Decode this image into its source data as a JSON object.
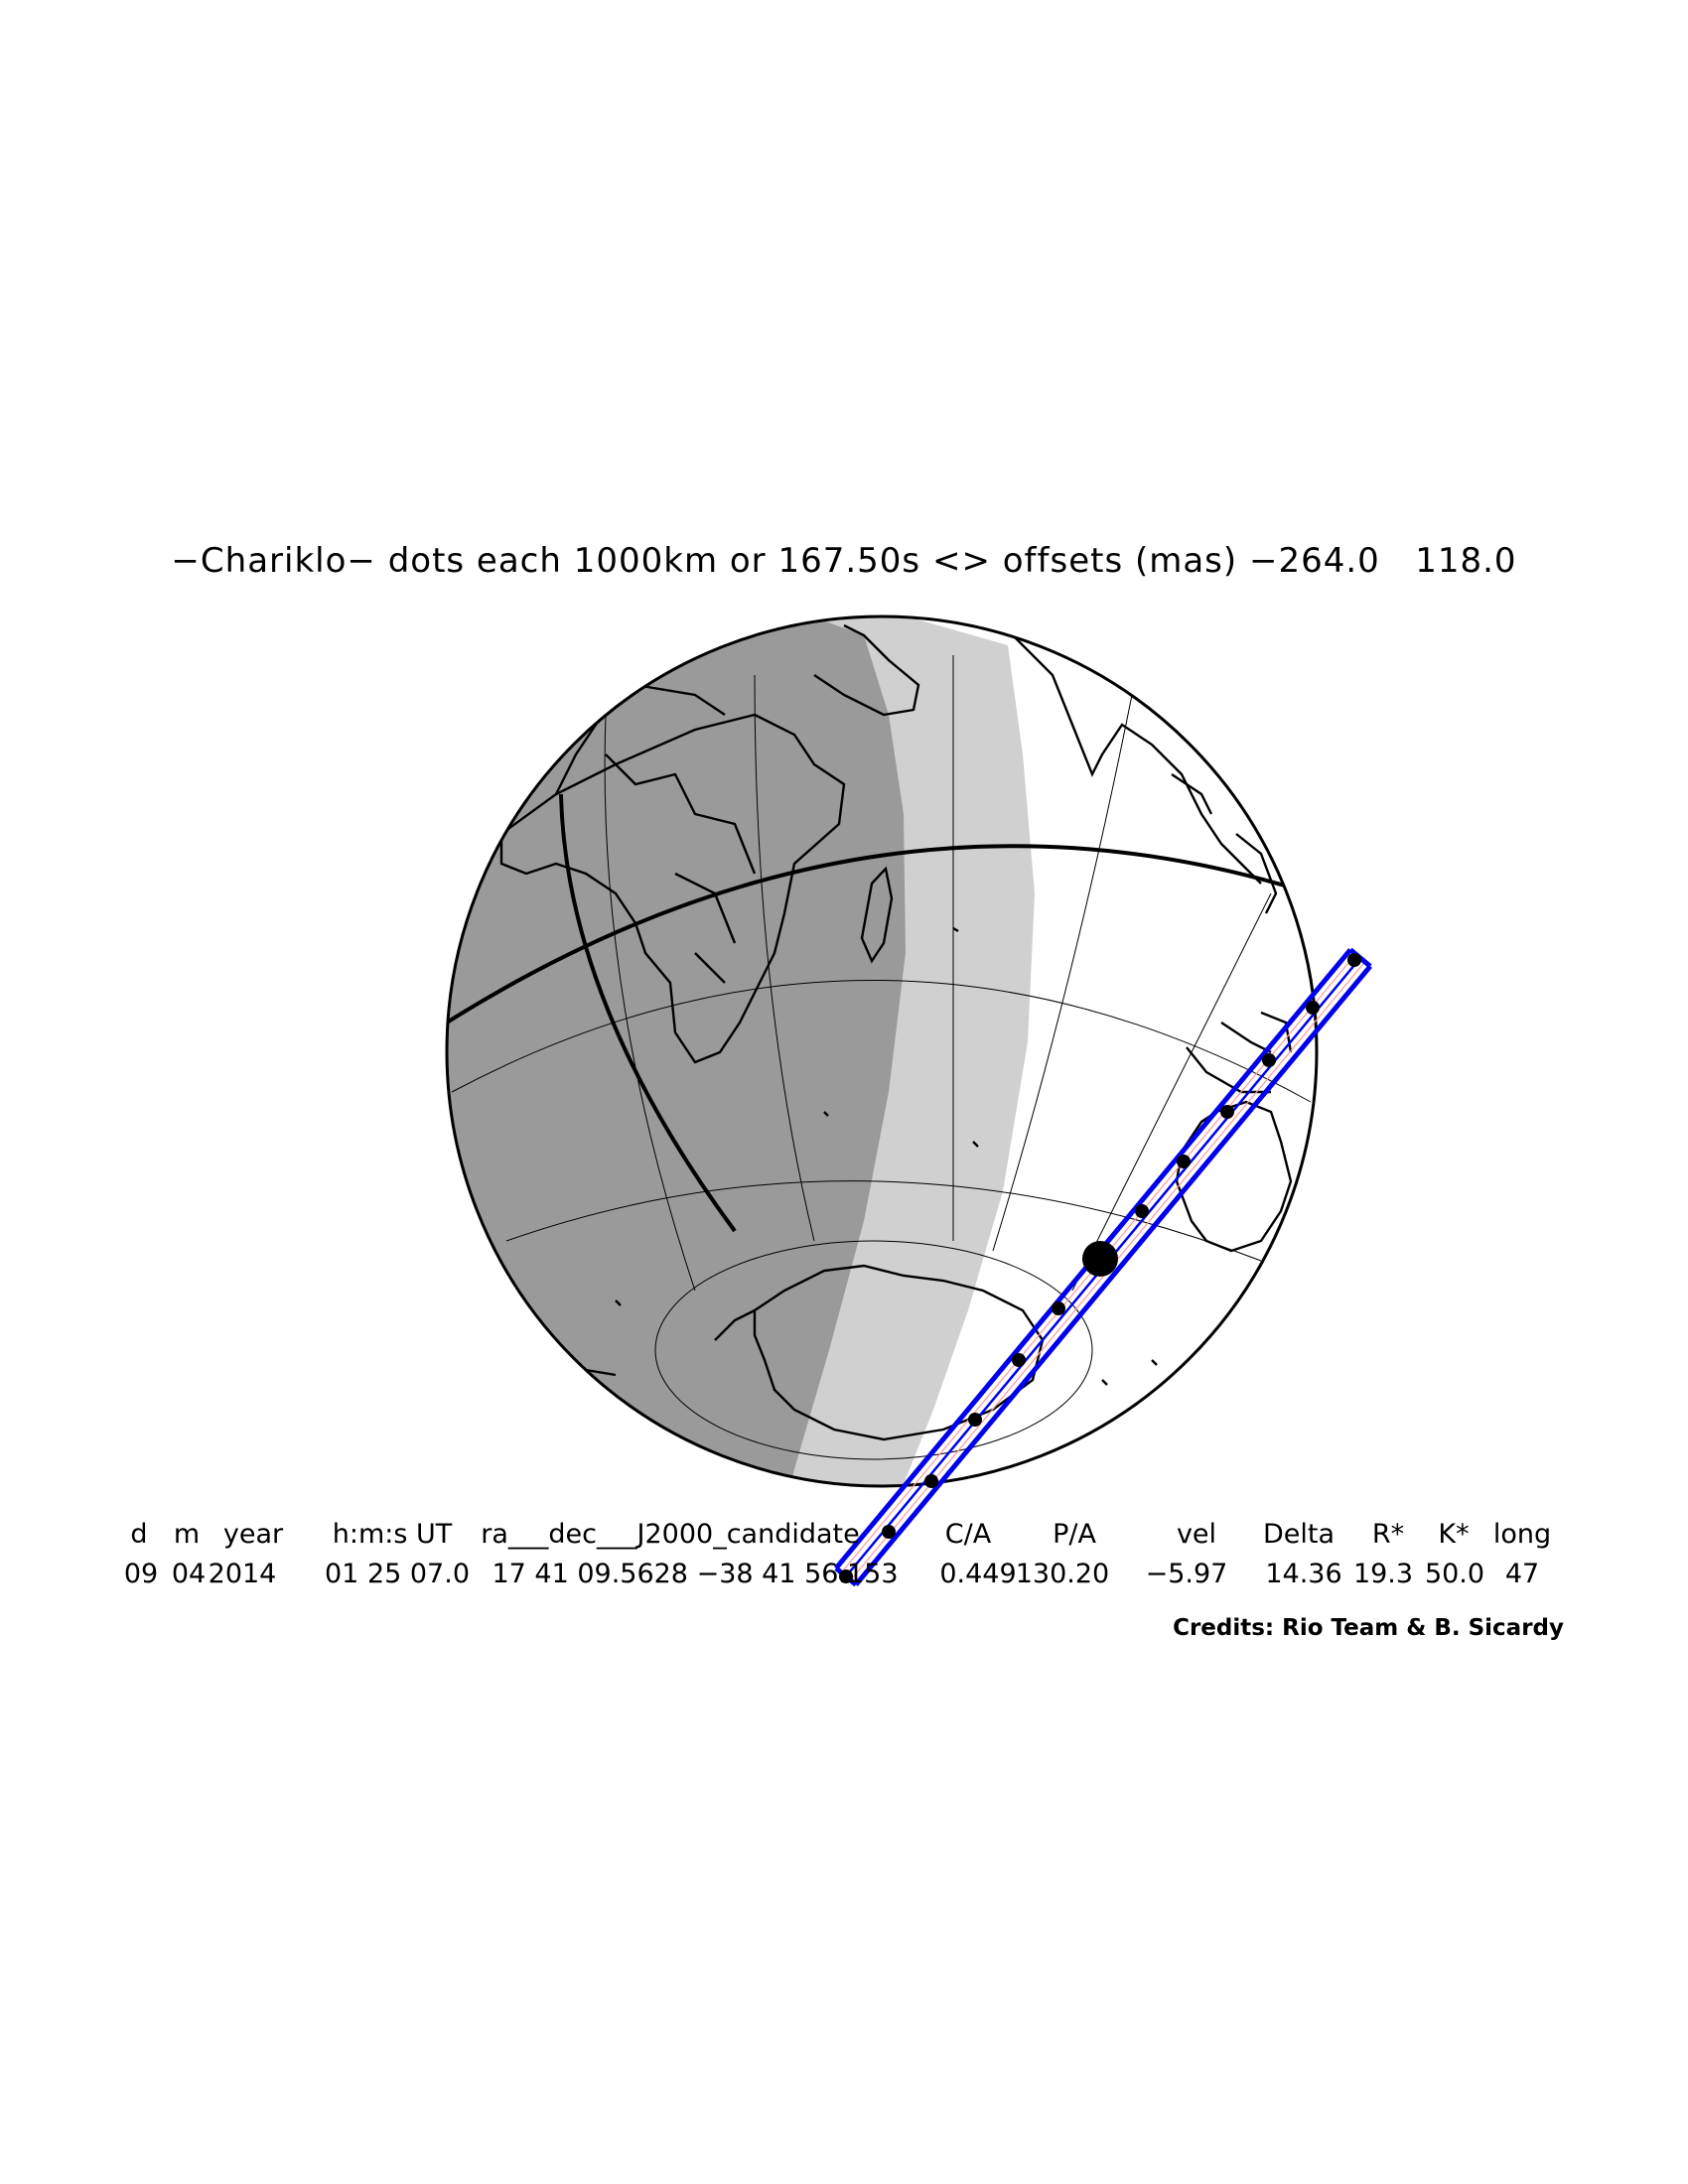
{
  "title": "−Chariklo− dots each 1000km or 167.50s <> offsets (mas) −264.0   118.0",
  "table": {
    "headers": [
      "d",
      "m",
      "year",
      "h:m:s UT",
      "ra___dec___J2000_candidate",
      "C/A",
      "P/A",
      "vel",
      "Delta",
      "R*",
      "K*",
      "long"
    ],
    "values": [
      "09",
      "04",
      "2014",
      "01 25 07.0",
      "17 41 09.5628 −38 41 56.153",
      "0.449",
      "130.20",
      "−5.97",
      "14.36",
      "19.3",
      "50.0",
      "47"
    ]
  },
  "credits": "Credits: Rio Team & B. Sicardy",
  "colors": {
    "night": "#9a9a9a",
    "twilight": "#d0d0d0",
    "day": "#ffffff",
    "track": "#0000ee",
    "dots": "#000000"
  },
  "icons": [
    "globe-map",
    "shadow-path-track",
    "closest-approach-dot"
  ]
}
